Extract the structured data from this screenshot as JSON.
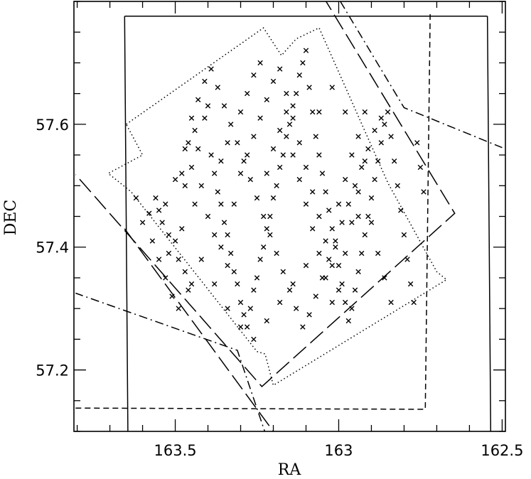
{
  "chart_data": {
    "type": "scatter",
    "title": "",
    "xlabel": "RA",
    "ylabel": "DEC",
    "x_reversed": true,
    "xlim": [
      163.81,
      162.49
    ],
    "ylim": [
      57.1,
      57.8
    ],
    "x_ticks": [
      163.5,
      163,
      162.5
    ],
    "x_tick_labels": [
      "163.5",
      "163",
      "162.5"
    ],
    "y_ticks": [
      57.2,
      57.4,
      57.6
    ],
    "y_tick_labels": [
      "57.2",
      "57.4",
      "57.6"
    ],
    "x_minor_step": 0.1,
    "y_minor_step": 0.05,
    "grid": false,
    "marker": "x",
    "footprints": [
      {
        "style": "solid",
        "points": [
          [
            163.655,
            57.776
          ],
          [
            162.545,
            57.776
          ]
        ]
      },
      {
        "style": "solid",
        "points": [
          [
            163.655,
            57.776
          ],
          [
            163.645,
            57.1
          ]
        ]
      },
      {
        "style": "solid",
        "points": [
          [
            162.545,
            57.776
          ],
          [
            162.535,
            57.1
          ]
        ]
      },
      {
        "style": "dashed",
        "points": [
          [
            163.805,
            57.138
          ],
          [
            162.735,
            57.136
          ],
          [
            162.72,
            57.785
          ]
        ]
      },
      {
        "style": "longdash",
        "points": [
          [
            163.05,
            57.81
          ],
          [
            162.645,
            57.455
          ],
          [
            163.235,
            57.173
          ],
          [
            163.805,
            57.518
          ]
        ]
      },
      {
        "style": "longdash",
        "points": [
          [
            163.655,
            57.43
          ],
          [
            163.2,
            57.1
          ]
        ]
      },
      {
        "style": "dotted",
        "points": [
          [
            163.65,
            57.6
          ],
          [
            163.23,
            57.757
          ],
          [
            163.175,
            57.712
          ],
          [
            163.13,
            57.739
          ],
          [
            163.06,
            57.757
          ],
          [
            162.85,
            57.505
          ],
          [
            162.7,
            57.36
          ],
          [
            162.67,
            57.347
          ],
          [
            163.2,
            57.175
          ],
          [
            163.225,
            57.226
          ],
          [
            163.25,
            57.23
          ],
          [
            163.635,
            57.49
          ],
          [
            163.705,
            57.52
          ],
          [
            163.6,
            57.55
          ],
          [
            163.65,
            57.6
          ]
        ]
      },
      {
        "style": "dashdot",
        "points": [
          [
            163.22,
            57.09
          ],
          [
            163.31,
            57.232
          ],
          [
            163.805,
            57.325
          ]
        ]
      },
      {
        "style": "dashdot",
        "points": [
          [
            162.995,
            57.8
          ],
          [
            162.8,
            57.627
          ],
          [
            162.5,
            57.562
          ]
        ]
      }
    ],
    "points": [
      [
        163.62,
        57.48
      ],
      [
        163.58,
        57.455
      ],
      [
        163.55,
        57.46
      ],
      [
        163.54,
        57.44
      ],
      [
        163.53,
        57.47
      ],
      [
        163.52,
        57.42
      ],
      [
        163.5,
        57.41
      ],
      [
        163.49,
        57.38
      ],
      [
        163.47,
        57.36
      ],
      [
        163.45,
        57.34
      ],
      [
        163.48,
        57.52
      ],
      [
        163.47,
        57.5
      ],
      [
        163.45,
        57.53
      ],
      [
        163.46,
        57.57
      ],
      [
        163.44,
        57.59
      ],
      [
        163.43,
        57.56
      ],
      [
        163.41,
        57.61
      ],
      [
        163.4,
        57.63
      ],
      [
        163.39,
        57.55
      ],
      [
        163.38,
        57.52
      ],
      [
        163.37,
        57.49
      ],
      [
        163.36,
        57.47
      ],
      [
        163.35,
        57.44
      ],
      [
        163.34,
        57.42
      ],
      [
        163.33,
        57.39
      ],
      [
        163.32,
        57.36
      ],
      [
        163.31,
        57.34
      ],
      [
        163.3,
        57.31
      ],
      [
        163.29,
        57.29
      ],
      [
        163.28,
        57.27
      ],
      [
        163.27,
        57.3
      ],
      [
        163.26,
        57.33
      ],
      [
        163.25,
        57.35
      ],
      [
        163.24,
        57.38
      ],
      [
        163.23,
        57.4
      ],
      [
        163.22,
        57.43
      ],
      [
        163.21,
        57.45
      ],
      [
        163.2,
        57.48
      ],
      [
        163.19,
        57.5
      ],
      [
        163.18,
        57.53
      ],
      [
        163.17,
        57.55
      ],
      [
        163.16,
        57.58
      ],
      [
        163.15,
        57.6
      ],
      [
        163.14,
        57.63
      ],
      [
        163.13,
        57.65
      ],
      [
        163.12,
        57.68
      ],
      [
        163.11,
        57.7
      ],
      [
        163.1,
        57.72
      ],
      [
        163.09,
        57.66
      ],
      [
        163.08,
        57.62
      ],
      [
        163.07,
        57.58
      ],
      [
        163.06,
        57.55
      ],
      [
        163.05,
        57.52
      ],
      [
        163.04,
        57.49
      ],
      [
        163.03,
        57.46
      ],
      [
        163.02,
        57.43
      ],
      [
        163.01,
        57.4
      ],
      [
        163.0,
        57.37
      ],
      [
        162.99,
        57.34
      ],
      [
        162.98,
        57.31
      ],
      [
        162.97,
        57.28
      ],
      [
        162.96,
        57.3
      ],
      [
        162.95,
        57.33
      ],
      [
        162.94,
        57.36
      ],
      [
        162.93,
        57.39
      ],
      [
        162.92,
        57.42
      ],
      [
        162.91,
        57.45
      ],
      [
        162.9,
        57.48
      ],
      [
        162.89,
        57.51
      ],
      [
        162.88,
        57.54
      ],
      [
        162.87,
        57.57
      ],
      [
        162.86,
        57.6
      ],
      [
        162.85,
        57.62
      ],
      [
        162.84,
        57.58
      ],
      [
        162.83,
        57.54
      ],
      [
        162.82,
        57.5
      ],
      [
        162.81,
        57.46
      ],
      [
        162.8,
        57.42
      ],
      [
        162.79,
        57.38
      ],
      [
        162.78,
        57.34
      ],
      [
        162.77,
        57.31
      ],
      [
        162.76,
        57.57
      ],
      [
        162.75,
        57.53
      ],
      [
        162.74,
        57.49
      ],
      [
        163.57,
        57.41
      ],
      [
        163.55,
        57.38
      ],
      [
        163.53,
        57.35
      ],
      [
        163.51,
        57.32
      ],
      [
        163.49,
        57.3
      ],
      [
        163.47,
        57.56
      ],
      [
        163.45,
        57.61
      ],
      [
        163.43,
        57.64
      ],
      [
        163.41,
        57.67
      ],
      [
        163.39,
        57.69
      ],
      [
        163.37,
        57.66
      ],
      [
        163.35,
        57.63
      ],
      [
        163.33,
        57.6
      ],
      [
        163.31,
        57.57
      ],
      [
        163.29,
        57.54
      ],
      [
        163.27,
        57.51
      ],
      [
        163.25,
        57.48
      ],
      [
        163.23,
        57.45
      ],
      [
        163.21,
        57.42
      ],
      [
        163.19,
        57.39
      ],
      [
        163.17,
        57.36
      ],
      [
        163.15,
        57.33
      ],
      [
        163.13,
        57.3
      ],
      [
        163.11,
        57.27
      ],
      [
        163.09,
        57.29
      ],
      [
        163.07,
        57.32
      ],
      [
        163.05,
        57.35
      ],
      [
        163.03,
        57.38
      ],
      [
        163.01,
        57.41
      ],
      [
        162.99,
        57.44
      ],
      [
        162.97,
        57.47
      ],
      [
        162.95,
        57.5
      ],
      [
        162.93,
        57.53
      ],
      [
        162.91,
        57.56
      ],
      [
        162.89,
        57.59
      ],
      [
        162.87,
        57.61
      ],
      [
        163.4,
        57.45
      ],
      [
        163.38,
        57.42
      ],
      [
        163.36,
        57.4
      ],
      [
        163.34,
        57.37
      ],
      [
        163.32,
        57.47
      ],
      [
        163.3,
        57.52
      ],
      [
        163.28,
        57.55
      ],
      [
        163.26,
        57.58
      ],
      [
        163.24,
        57.61
      ],
      [
        163.22,
        57.64
      ],
      [
        163.2,
        57.67
      ],
      [
        163.18,
        57.69
      ],
      [
        163.16,
        57.65
      ],
      [
        163.14,
        57.61
      ],
      [
        163.12,
        57.57
      ],
      [
        163.1,
        57.53
      ],
      [
        163.08,
        57.49
      ],
      [
        163.06,
        57.45
      ],
      [
        163.04,
        57.41
      ],
      [
        163.02,
        57.37
      ],
      [
        163.0,
        57.33
      ],
      [
        162.98,
        57.39
      ],
      [
        162.96,
        57.44
      ],
      [
        162.94,
        57.49
      ],
      [
        162.92,
        57.54
      ],
      [
        162.9,
        57.44
      ],
      [
        162.88,
        57.39
      ],
      [
        162.86,
        57.35
      ],
      [
        162.84,
        57.31
      ],
      [
        163.5,
        57.51
      ],
      [
        163.44,
        57.47
      ],
      [
        163.42,
        57.5
      ],
      [
        163.36,
        57.54
      ],
      [
        163.34,
        57.57
      ],
      [
        163.3,
        57.62
      ],
      [
        163.28,
        57.65
      ],
      [
        163.26,
        57.68
      ],
      [
        163.24,
        57.7
      ],
      [
        163.22,
        57.52
      ],
      [
        163.2,
        57.56
      ],
      [
        163.18,
        57.59
      ],
      [
        163.16,
        57.62
      ],
      [
        163.14,
        57.55
      ],
      [
        163.12,
        57.51
      ],
      [
        163.1,
        57.47
      ],
      [
        163.08,
        57.43
      ],
      [
        163.06,
        57.39
      ],
      [
        163.04,
        57.35
      ],
      [
        163.02,
        57.31
      ],
      [
        163.0,
        57.47
      ],
      [
        162.98,
        57.51
      ],
      [
        162.96,
        57.55
      ],
      [
        162.94,
        57.58
      ],
      [
        162.92,
        57.62
      ],
      [
        163.6,
        57.44
      ],
      [
        163.56,
        57.48
      ],
      [
        163.52,
        57.39
      ],
      [
        163.48,
        57.43
      ],
      [
        163.46,
        57.33
      ],
      [
        163.42,
        57.38
      ],
      [
        163.38,
        57.34
      ],
      [
        163.34,
        57.3
      ],
      [
        163.3,
        57.27
      ],
      [
        163.26,
        57.25
      ],
      [
        163.22,
        57.28
      ],
      [
        163.18,
        57.31
      ],
      [
        163.14,
        57.34
      ],
      [
        163.1,
        57.37
      ],
      [
        163.06,
        57.62
      ],
      [
        163.02,
        57.66
      ],
      [
        162.98,
        57.62
      ],
      [
        162.94,
        57.45
      ]
    ]
  }
}
